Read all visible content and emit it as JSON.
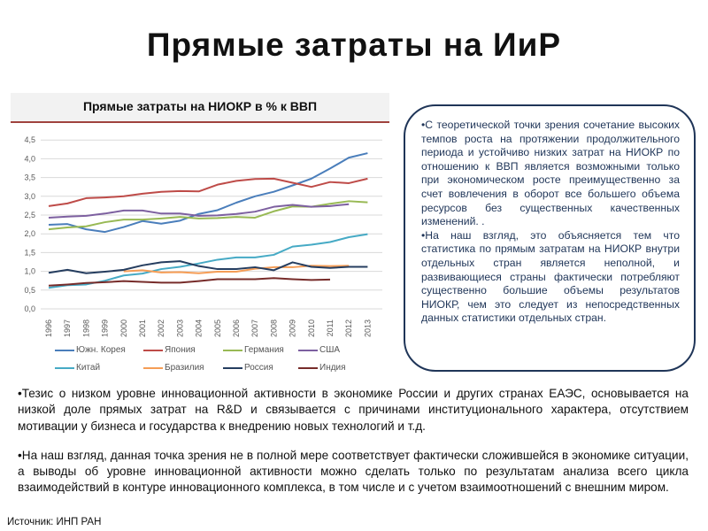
{
  "title": "Прямые затраты на ИиР",
  "side_box": {
    "p1": "•С теоретической точки зрения сочетание высоких темпов роста на протяжении продолжительного периода и устойчиво низких затрат на НИОКР по отношению к ВВП является возможными только при экономическом росте преимущественно за счет вовлечения в оборот все большего объема ресурсов без существенных качественных изменений. .",
    "p2": "•На наш взгляд, это объясняется тем что статистика по прямым затратам на НИОКР внутри отдельных стран является неполной, и развивающиеся страны фактически потребляют существенно большие объемы результатов НИОКР, чем это следует из непосредственных данных статистики отдельных стран."
  },
  "bottom": {
    "p1": "•Тезис о низком уровне инновационной активности в экономике России и других странах ЕАЭС, основывается на низкой доле прямых затрат на R&D и связывается с причинами институционального характера, отсутствием мотивации у бизнеса и государства к внедрению новых технологий и т.д.",
    "p2": "•На наш взгляд, данная точка зрения не в полной мере соответствует фактически сложившейся в экономике ситуации, а выводы об уровне инновационной активности можно сделать только по результатам анализа всего цикла взаимодействий в контуре инновационного комплекса, в том числе и с учетом взаимоотношений с внешним миром."
  },
  "source": "Источник: ИНП РАН",
  "chart_data": {
    "type": "line",
    "title": "Прямые затраты на НИОКР в % к ВВП",
    "xlabel": "",
    "ylabel": "",
    "ylim": [
      0,
      4.5
    ],
    "yticks": [
      "0,0",
      "0,5",
      "1,0",
      "1,5",
      "2,0",
      "2,5",
      "3,0",
      "3,5",
      "4,0",
      "4,5"
    ],
    "x": [
      "1996",
      "1997",
      "1998",
      "1999",
      "2000",
      "2001",
      "2002",
      "2003",
      "2004",
      "2005",
      "2006",
      "2007",
      "2008",
      "2009",
      "2010",
      "2011",
      "2012",
      "2013"
    ],
    "grid": true,
    "legend_position": "bottom",
    "series": [
      {
        "name": "Южн. Корея",
        "color": "#4a7ebb",
        "values": [
          2.24,
          2.26,
          2.12,
          2.05,
          2.18,
          2.34,
          2.27,
          2.35,
          2.53,
          2.63,
          2.83,
          3.0,
          3.12,
          3.29,
          3.47,
          3.74,
          4.03,
          4.15
        ]
      },
      {
        "name": "Япония",
        "color": "#be4b48",
        "values": [
          2.74,
          2.81,
          2.95,
          2.97,
          3.0,
          3.07,
          3.12,
          3.14,
          3.13,
          3.31,
          3.41,
          3.46,
          3.47,
          3.36,
          3.25,
          3.38,
          3.35,
          3.47
        ]
      },
      {
        "name": "Германия",
        "color": "#98b954",
        "values": [
          2.12,
          2.17,
          2.2,
          2.31,
          2.38,
          2.38,
          2.41,
          2.45,
          2.41,
          2.42,
          2.45,
          2.43,
          2.6,
          2.73,
          2.72,
          2.8,
          2.87,
          2.84
        ]
      },
      {
        "name": "США",
        "color": "#7d60a0",
        "values": [
          2.43,
          2.46,
          2.48,
          2.54,
          2.62,
          2.62,
          2.54,
          2.54,
          2.48,
          2.49,
          2.53,
          2.59,
          2.72,
          2.77,
          2.72,
          2.74,
          2.79,
          null
        ]
      },
      {
        "name": "Китай",
        "color": "#46aac5",
        "values": [
          0.56,
          0.63,
          0.65,
          0.75,
          0.89,
          0.94,
          1.06,
          1.12,
          1.21,
          1.31,
          1.37,
          1.37,
          1.44,
          1.66,
          1.71,
          1.78,
          1.91,
          1.99
        ]
      },
      {
        "name": "Бразилия",
        "color": "#f59d56",
        "values": [
          null,
          null,
          null,
          null,
          1.0,
          1.03,
          0.97,
          0.98,
          0.95,
          0.99,
          0.99,
          1.07,
          1.11,
          1.11,
          1.15,
          1.14,
          1.15,
          null
        ]
      },
      {
        "name": "Россия",
        "color": "#253d5f",
        "values": [
          0.96,
          1.04,
          0.95,
          0.99,
          1.04,
          1.16,
          1.24,
          1.27,
          1.14,
          1.06,
          1.06,
          1.11,
          1.03,
          1.24,
          1.12,
          1.09,
          1.12,
          1.12
        ]
      },
      {
        "name": "Индия",
        "color": "#772c2a",
        "values": [
          0.62,
          0.65,
          0.69,
          0.71,
          0.74,
          0.72,
          0.7,
          0.7,
          0.74,
          0.79,
          0.79,
          0.79,
          0.82,
          0.79,
          0.77,
          0.78,
          null,
          null
        ]
      }
    ]
  }
}
